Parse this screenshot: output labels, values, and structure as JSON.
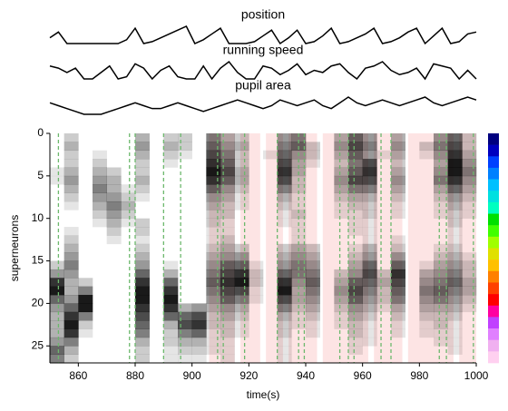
{
  "chart_data": [
    {
      "type": "traces",
      "xlim": [
        850,
        1000
      ],
      "x": [
        850,
        853,
        856,
        859,
        862,
        865,
        868,
        871,
        874,
        877,
        880,
        883,
        886,
        889,
        892,
        895,
        898,
        901,
        904,
        907,
        910,
        913,
        916,
        919,
        922,
        925,
        928,
        931,
        934,
        937,
        940,
        943,
        946,
        949,
        952,
        955,
        958,
        961,
        964,
        967,
        970,
        973,
        976,
        979,
        982,
        985,
        988,
        991,
        994,
        997,
        1000
      ],
      "series": [
        {
          "name": "position",
          "color": "#000000",
          "values": [
            0.4,
            0.7,
            0.1,
            0.1,
            0.1,
            0.1,
            0.1,
            0.1,
            0.1,
            0.3,
            0.9,
            0.1,
            0.2,
            0.4,
            0.6,
            0.8,
            1,
            0.1,
            0.3,
            0.6,
            0.9,
            0.1,
            0.1,
            0.1,
            0.2,
            0.5,
            0.8,
            0.1,
            0.4,
            0.8,
            0.1,
            0.2,
            0.5,
            0.9,
            0.1,
            0.2,
            0.4,
            0.6,
            0.9,
            0.1,
            0.2,
            0.4,
            0.7,
            0.9,
            0.1,
            0.5,
            0.9,
            0.1,
            0.2,
            0.6,
            0.7
          ]
        },
        {
          "name": "running speed",
          "color": "#000000",
          "values": [
            0.6,
            0.5,
            0.3,
            0.5,
            0,
            0,
            0.3,
            0.6,
            0,
            0.1,
            0.7,
            0.5,
            0,
            0.4,
            0.6,
            0.1,
            0,
            0,
            0.6,
            0,
            0.5,
            0.8,
            0.3,
            0,
            0,
            0.6,
            0.5,
            0.2,
            0.4,
            0.7,
            0.2,
            0.4,
            0.3,
            0.6,
            0.7,
            0.3,
            0,
            0.5,
            0.6,
            0.8,
            0.4,
            0.2,
            0.3,
            0.5,
            0,
            0.7,
            0.6,
            0.5,
            0,
            0.4,
            0
          ]
        },
        {
          "name": "pupil area",
          "color": "#000000",
          "values": [
            0.6,
            0.5,
            0.4,
            0.3,
            0.2,
            0.2,
            0.2,
            0.3,
            0.4,
            0.5,
            0.6,
            0.5,
            0.4,
            0.4,
            0.5,
            0.6,
            0.5,
            0.4,
            0.3,
            0.4,
            0.5,
            0.6,
            0.7,
            0.6,
            0.5,
            0.4,
            0.5,
            0.7,
            0.6,
            0.5,
            0.6,
            0.7,
            0.5,
            0.4,
            0.6,
            0.8,
            0.6,
            0.5,
            0.6,
            0.7,
            0.6,
            0.5,
            0.6,
            0.7,
            0.8,
            0.6,
            0.5,
            0.6,
            0.7,
            0.8,
            0.7
          ]
        }
      ]
    },
    {
      "type": "heatmap",
      "xlabel": "time(s)",
      "ylabel": "superneurons",
      "xlim": [
        850,
        1000
      ],
      "ylim": [
        27,
        0
      ],
      "xticks": [
        860,
        880,
        900,
        920,
        940,
        960,
        980,
        1000
      ],
      "yticks": [
        0,
        5,
        10,
        15,
        20,
        25
      ],
      "cmap": "#000000",
      "zlim": [
        0,
        1
      ],
      "x_edges": [
        850,
        855,
        860,
        865,
        870,
        875,
        880,
        885,
        890,
        895,
        900,
        905,
        910,
        915,
        920,
        925,
        930,
        935,
        940,
        945,
        950,
        955,
        960,
        965,
        970,
        975,
        980,
        985,
        990,
        995,
        1000
      ],
      "z": [
        [
          0,
          0.2,
          0,
          0,
          0,
          0,
          0.3,
          0,
          0.2,
          0.2,
          0,
          0.5,
          0.3,
          0.2,
          0,
          0,
          0.4,
          0.5,
          0,
          0,
          0.3,
          0.6,
          0.4,
          0,
          0.3,
          0,
          0,
          0.4,
          0.6,
          0.2
        ],
        [
          0,
          0.3,
          0,
          0,
          0,
          0,
          0.4,
          0,
          0.3,
          0.2,
          0,
          0.6,
          0.4,
          0.3,
          0,
          0,
          0.5,
          0.6,
          0.2,
          0,
          0.4,
          0.7,
          0.5,
          0,
          0.4,
          0,
          0.2,
          0.5,
          0.7,
          0.2
        ],
        [
          0,
          0.2,
          0,
          0.1,
          0,
          0,
          0.3,
          0,
          0.2,
          0.1,
          0,
          0.7,
          0.5,
          0.2,
          0,
          0.1,
          0.6,
          0.4,
          0.2,
          0,
          0.3,
          0.6,
          0.4,
          0.1,
          0.3,
          0,
          0.1,
          0.4,
          0.8,
          0.3
        ],
        [
          0,
          0.2,
          0,
          0.2,
          0,
          0,
          0.2,
          0,
          0.1,
          0,
          0,
          0.8,
          0.6,
          0.2,
          0,
          0,
          0.7,
          0.3,
          0.1,
          0,
          0.2,
          0.5,
          0.7,
          0,
          0.2,
          0,
          0,
          0.3,
          0.9,
          0.4
        ],
        [
          0.1,
          0.3,
          0,
          0.3,
          0.2,
          0,
          0.2,
          0,
          0,
          0,
          0,
          0.9,
          0.7,
          0.3,
          0,
          0,
          0.8,
          0.3,
          0,
          0,
          0.3,
          0.6,
          0.8,
          0,
          0.3,
          0,
          0,
          0.4,
          0.9,
          0.5
        ],
        [
          0.1,
          0.4,
          0,
          0.4,
          0.3,
          0,
          0.3,
          0,
          0,
          0,
          0,
          0.8,
          0.6,
          0.3,
          0,
          0,
          0.7,
          0.2,
          0,
          0,
          0.4,
          0.7,
          0.7,
          0,
          0.4,
          0,
          0,
          0.5,
          0.8,
          0.4
        ],
        [
          0,
          0.3,
          0,
          0.5,
          0.3,
          0.1,
          0.2,
          0,
          0,
          0,
          0,
          0.6,
          0.4,
          0.2,
          0,
          0,
          0.5,
          0.2,
          0,
          0,
          0.3,
          0.5,
          0.5,
          0,
          0.3,
          0,
          0,
          0.3,
          0.6,
          0.3
        ],
        [
          0,
          0.2,
          0,
          0.4,
          0.4,
          0.2,
          0.1,
          0,
          0,
          0,
          0,
          0.4,
          0.3,
          0.1,
          0,
          0,
          0.3,
          0.1,
          0,
          0,
          0.2,
          0.3,
          0.3,
          0,
          0.2,
          0,
          0,
          0.2,
          0.4,
          0.2
        ],
        [
          0,
          0.1,
          0,
          0.3,
          0.5,
          0.3,
          0,
          0,
          0,
          0,
          0,
          0.3,
          0.2,
          0.1,
          0,
          0,
          0.2,
          0.1,
          0,
          0,
          0.1,
          0.2,
          0.2,
          0,
          0.1,
          0,
          0,
          0.1,
          0.3,
          0.1
        ],
        [
          0,
          0,
          0,
          0.2,
          0.4,
          0.2,
          0,
          0,
          0,
          0,
          0,
          0.2,
          0.2,
          0,
          0,
          0,
          0.1,
          0.2,
          0,
          0,
          0.1,
          0.1,
          0.2,
          0,
          0.1,
          0,
          0,
          0.1,
          0.2,
          0.1
        ],
        [
          0,
          0,
          0,
          0.1,
          0.3,
          0.1,
          0.2,
          0,
          0,
          0,
          0,
          0.2,
          0.1,
          0,
          0,
          0,
          0.1,
          0.1,
          0,
          0,
          0,
          0.1,
          0.1,
          0,
          0,
          0,
          0,
          0,
          0.2,
          0
        ],
        [
          0,
          0.1,
          0,
          0,
          0.2,
          0,
          0.2,
          0,
          0,
          0,
          0,
          0.1,
          0.1,
          0,
          0,
          0,
          0,
          0.1,
          0,
          0,
          0,
          0.1,
          0.1,
          0,
          0,
          0,
          0,
          0,
          0.1,
          0
        ],
        [
          0,
          0.2,
          0,
          0,
          0.1,
          0,
          0.1,
          0,
          0,
          0,
          0,
          0.1,
          0.2,
          0,
          0,
          0,
          0,
          0.1,
          0,
          0,
          0,
          0,
          0.1,
          0,
          0.1,
          0,
          0,
          0,
          0.1,
          0
        ],
        [
          0,
          0.3,
          0,
          0,
          0,
          0,
          0.2,
          0,
          0,
          0,
          0,
          0.2,
          0.3,
          0.2,
          0,
          0,
          0.2,
          0.3,
          0.2,
          0,
          0,
          0.1,
          0.3,
          0,
          0.2,
          0,
          0,
          0.1,
          0.2,
          0
        ],
        [
          0,
          0.4,
          0,
          0,
          0,
          0,
          0.3,
          0,
          0,
          0,
          0,
          0.3,
          0.4,
          0.4,
          0,
          0,
          0.3,
          0.4,
          0.3,
          0,
          0,
          0.2,
          0.4,
          0,
          0.4,
          0,
          0,
          0.2,
          0.3,
          0.1
        ],
        [
          0.2,
          0.5,
          0,
          0,
          0,
          0,
          0.4,
          0,
          0.1,
          0,
          0,
          0.4,
          0.6,
          0.6,
          0.1,
          0,
          0.4,
          0.5,
          0.4,
          0,
          0,
          0.3,
          0.6,
          0,
          0.6,
          0,
          0.1,
          0.3,
          0.4,
          0.2
        ],
        [
          0.4,
          0.4,
          0,
          0,
          0,
          0,
          0.6,
          0,
          0.3,
          0,
          0,
          0.5,
          0.7,
          0.8,
          0.2,
          0,
          0.6,
          0.5,
          0.5,
          0,
          0.2,
          0.4,
          0.7,
          0.2,
          0.8,
          0,
          0.3,
          0.4,
          0.5,
          0.2
        ],
        [
          0.8,
          0.3,
          0.2,
          0,
          0,
          0,
          0.8,
          0,
          0.6,
          0,
          0,
          0.6,
          0.8,
          0.9,
          0.2,
          0,
          0.8,
          0.4,
          0.6,
          0,
          0.3,
          0.6,
          0.6,
          0.3,
          0.7,
          0,
          0.4,
          0.5,
          0.6,
          0.3
        ],
        [
          0.9,
          0.3,
          0.5,
          0,
          0,
          0,
          0.9,
          0,
          0.8,
          0,
          0,
          0.5,
          0.7,
          0.7,
          0.1,
          0,
          0.9,
          0.3,
          0.5,
          0,
          0.4,
          0.7,
          0.5,
          0.2,
          0.6,
          0,
          0.5,
          0.6,
          0.5,
          0.3
        ],
        [
          0.6,
          0.4,
          0.9,
          0,
          0,
          0,
          0.9,
          0,
          0.9,
          0,
          0,
          0.4,
          0.6,
          0.5,
          0.1,
          0,
          0.7,
          0.3,
          0.4,
          0,
          0.3,
          0.6,
          0.4,
          0.2,
          0.5,
          0,
          0.4,
          0.5,
          0.4,
          0.2
        ],
        [
          0.4,
          0.6,
          0.9,
          0,
          0,
          0,
          0.8,
          0,
          0.8,
          0.3,
          0.4,
          0.3,
          0.4,
          0.3,
          0,
          0,
          0.5,
          0.2,
          0.3,
          0,
          0.2,
          0.4,
          0.3,
          0.1,
          0.3,
          0,
          0.3,
          0.3,
          0.3,
          0.1
        ],
        [
          0.3,
          0.8,
          0.5,
          0,
          0,
          0,
          0.7,
          0,
          0.6,
          0.6,
          0.7,
          0.2,
          0.3,
          0.2,
          0,
          0,
          0.3,
          0.1,
          0.2,
          0,
          0.1,
          0.3,
          0.2,
          0,
          0.2,
          0,
          0.2,
          0.2,
          0.2,
          0
        ],
        [
          0.3,
          0.9,
          0.2,
          0,
          0,
          0,
          0.6,
          0,
          0.3,
          0.7,
          0.8,
          0.2,
          0.2,
          0.1,
          0,
          0,
          0.2,
          0.1,
          0.1,
          0,
          0.1,
          0.2,
          0.1,
          0,
          0.1,
          0,
          0.1,
          0.2,
          0.1,
          0
        ],
        [
          0.3,
          0.8,
          0.1,
          0,
          0,
          0,
          0.5,
          0,
          0.2,
          0.5,
          0.6,
          0.1,
          0.2,
          0.1,
          0,
          0,
          0.2,
          0,
          0.1,
          0,
          0,
          0.2,
          0.1,
          0,
          0.1,
          0,
          0.1,
          0.1,
          0.1,
          0
        ],
        [
          0.4,
          0.5,
          0,
          0,
          0,
          0,
          0.3,
          0,
          0.2,
          0.3,
          0.3,
          0.1,
          0.1,
          0,
          0,
          0,
          0.1,
          0,
          0,
          0,
          0,
          0.1,
          0.1,
          0,
          0,
          0,
          0,
          0.1,
          0.1,
          0
        ],
        [
          0.6,
          0.3,
          0,
          0,
          0,
          0,
          0.2,
          0,
          0.1,
          0.2,
          0.2,
          0.1,
          0.1,
          0,
          0,
          0,
          0.1,
          0,
          0,
          0,
          0,
          0.1,
          0,
          0,
          0,
          0,
          0,
          0,
          0.1,
          0
        ],
        [
          0.5,
          0.2,
          0,
          0,
          0,
          0,
          0.2,
          0,
          0.1,
          0.1,
          0.1,
          0,
          0.1,
          0,
          0,
          0,
          0.1,
          0,
          0,
          0,
          0,
          0,
          0,
          0,
          0,
          0,
          0,
          0,
          0,
          0
        ]
      ],
      "shaded": [
        [
          906,
          915
        ],
        [
          917,
          924
        ],
        [
          926,
          932
        ],
        [
          934,
          944
        ],
        [
          946,
          962
        ],
        [
          964,
          974
        ],
        [
          976,
          992
        ],
        [
          994,
          1000
        ]
      ],
      "shade_color": "#fde4e4",
      "events": [
        853,
        878,
        880,
        890,
        896,
        909,
        911,
        918.5,
        930,
        937.5,
        939.5,
        952,
        955,
        957,
        966.5,
        970,
        987,
        989.5,
        999
      ],
      "event_color": "#6cb86c",
      "colorbar_colors": [
        "#000080",
        "#0000c0",
        "#0040ff",
        "#0080ff",
        "#00c0ff",
        "#00e0e0",
        "#00ffc0",
        "#00e000",
        "#40ff00",
        "#a0ff00",
        "#e0e000",
        "#ffc000",
        "#ff8000",
        "#ff4000",
        "#ff0000",
        "#ff00a0",
        "#c040ff",
        "#e080ff",
        "#f0b0f0",
        "#ffd0f0"
      ]
    }
  ]
}
